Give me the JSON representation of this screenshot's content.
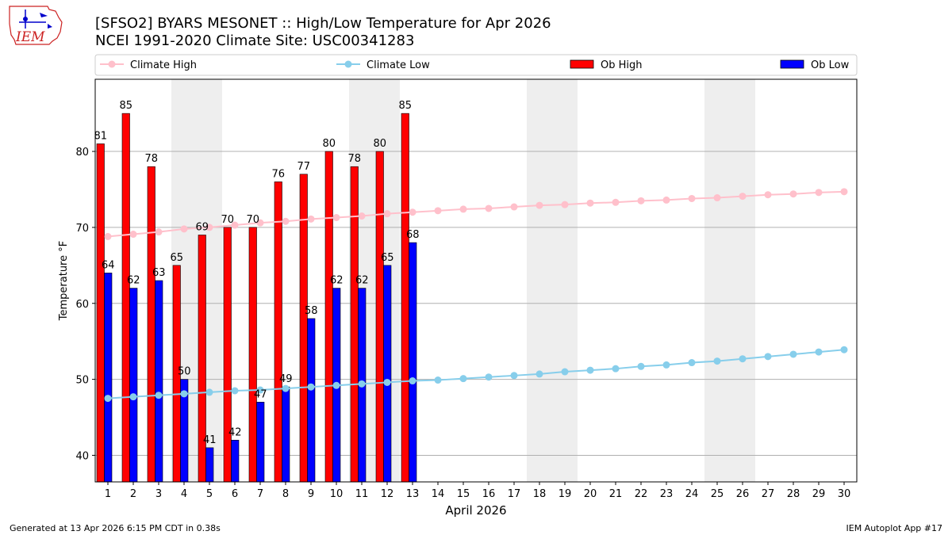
{
  "title_line1": "[SFSO2] BYARS MESONET :: High/Low Temperature for Apr 2026",
  "title_line2": "NCEI 1991-2020 Climate Site: USC00341283",
  "logo_text": "IEM",
  "footer_left": "Generated at 13 Apr 2026 6:15 PM CDT in 0.38s",
  "footer_right": "IEM Autoplot App #17",
  "colors": {
    "ob_high": "#ff0000",
    "ob_low": "#0000ff",
    "climate_high": "#ffc0cb",
    "climate_low": "#87ceeb",
    "weekend_band": "#eeeeee",
    "grid": "#b0b0b0"
  },
  "chart_data": {
    "type": "bar",
    "xlabel": "April 2026",
    "ylabel": "Temperature °F",
    "ylim": [
      36.5,
      89.5
    ],
    "yticks": [
      40,
      50,
      60,
      70,
      80
    ],
    "grid": "horizontal",
    "legend_placement": "top",
    "days": [
      1,
      2,
      3,
      4,
      5,
      6,
      7,
      8,
      9,
      10,
      11,
      12,
      13,
      14,
      15,
      16,
      17,
      18,
      19,
      20,
      21,
      22,
      23,
      24,
      25,
      26,
      27,
      28,
      29,
      30
    ],
    "weekend_bands": [
      [
        4,
        5
      ],
      [
        11,
        12
      ],
      [
        18,
        19
      ],
      [
        25,
        26
      ]
    ],
    "series": [
      {
        "name": "Climate High",
        "kind": "line",
        "values": [
          68.8,
          69.1,
          69.4,
          69.8,
          70.0,
          70.3,
          70.6,
          70.8,
          71.1,
          71.3,
          71.5,
          71.8,
          72.0,
          72.2,
          72.4,
          72.5,
          72.7,
          72.9,
          73.0,
          73.2,
          73.3,
          73.5,
          73.6,
          73.8,
          73.9,
          74.1,
          74.3,
          74.4,
          74.6,
          74.7
        ]
      },
      {
        "name": "Climate Low",
        "kind": "line",
        "values": [
          47.5,
          47.7,
          47.9,
          48.1,
          48.3,
          48.5,
          48.6,
          48.8,
          49.0,
          49.2,
          49.4,
          49.6,
          49.8,
          49.9,
          50.1,
          50.3,
          50.5,
          50.7,
          51.0,
          51.2,
          51.4,
          51.7,
          51.9,
          52.2,
          52.4,
          52.7,
          53.0,
          53.3,
          53.6,
          53.9
        ]
      },
      {
        "name": "Ob High",
        "kind": "bar",
        "values": [
          81,
          85,
          78,
          65,
          69,
          70,
          70,
          76,
          77,
          80,
          78,
          80,
          85
        ],
        "labels": [
          "81",
          "85",
          "78",
          "65",
          "69",
          "70",
          "70",
          "76",
          "77",
          "80",
          "78",
          "80",
          "85"
        ]
      },
      {
        "name": "Ob Low",
        "kind": "bar",
        "values": [
          64,
          62,
          63,
          50,
          41,
          42,
          47,
          49,
          58,
          62,
          62,
          65,
          68
        ],
        "labels": [
          "64",
          "62",
          "63",
          "50",
          "41",
          "42",
          "47",
          "49",
          "58",
          "62",
          "62",
          "65",
          "68"
        ]
      }
    ]
  }
}
